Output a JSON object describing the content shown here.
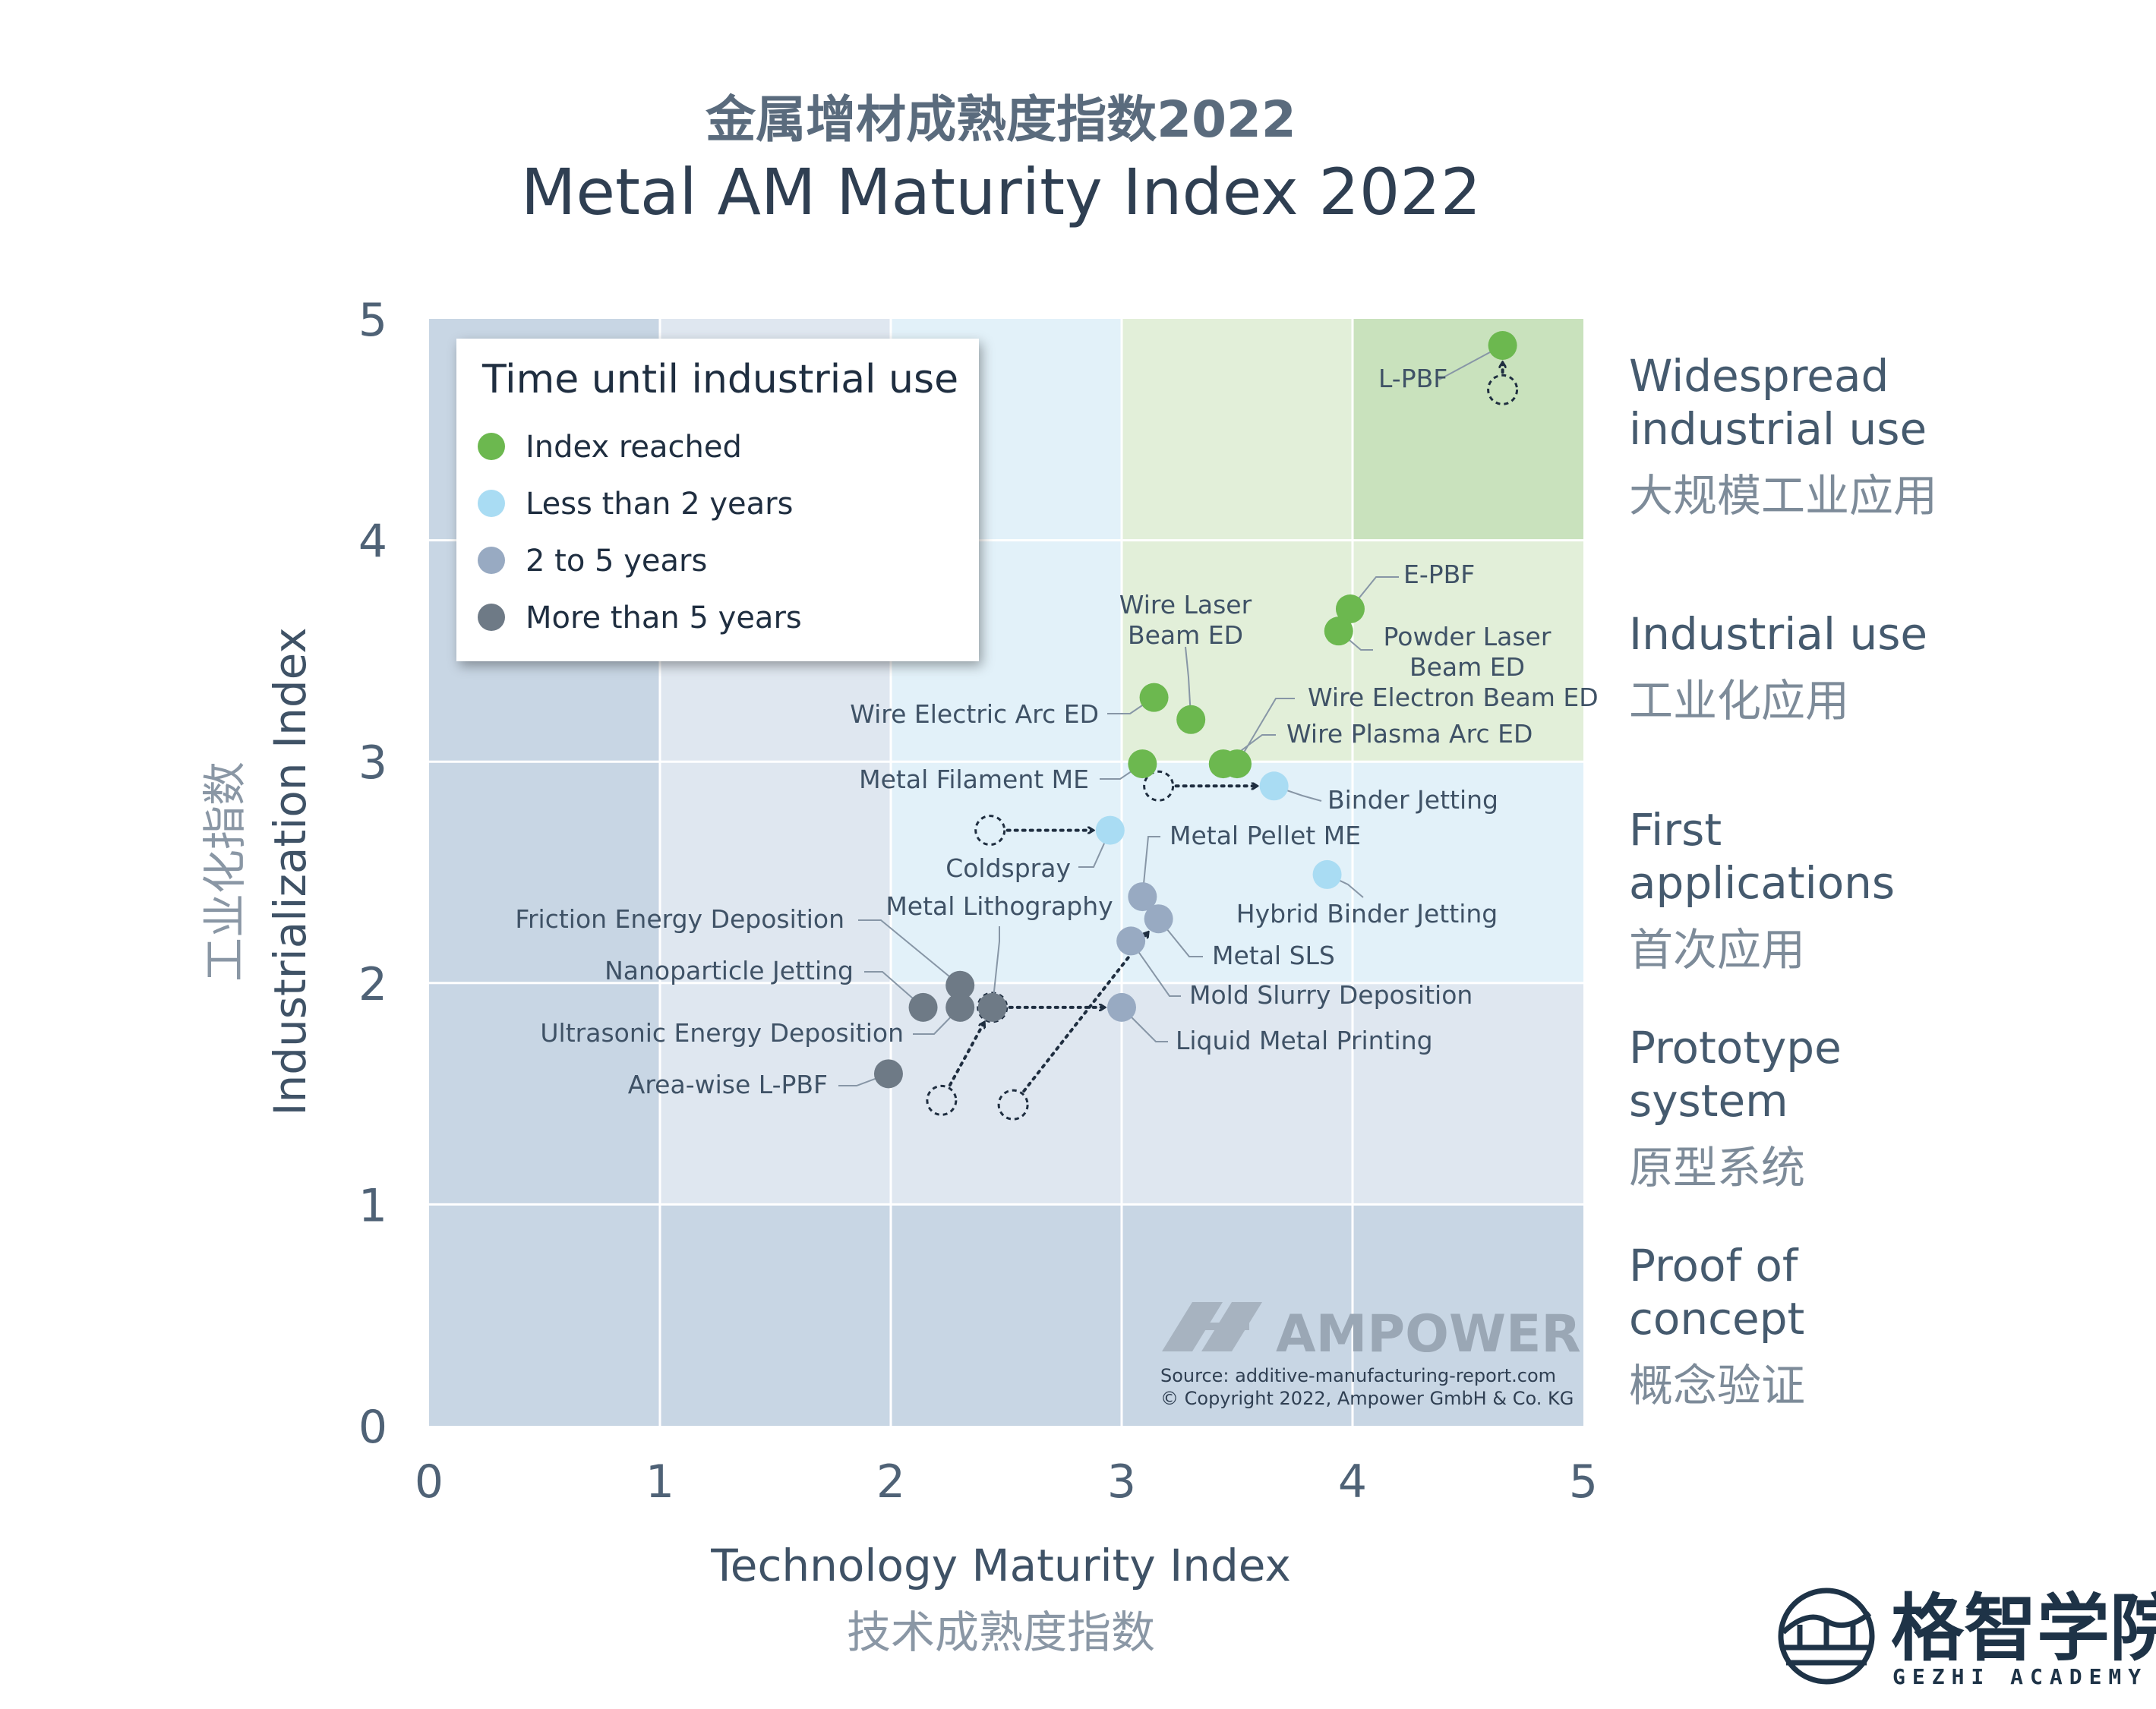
{
  "title_cn": "金属增材成熟度指数2022",
  "title_en": "Metal AM Maturity Index 2022",
  "colors": {
    "index_reached": "#6cb84f",
    "less_than_2": "#a9dcf3",
    "two_to_five": "#98aac2",
    "more_than_5": "#6e7a86",
    "zone_proof": "#c8d6e4",
    "zone_mid": "#dfe7f0",
    "zone_first": "#e2f1f9",
    "zone_industrial": "#e2efd9",
    "zone_widespread": "#c9e2bd",
    "arrow": "#1f2e40"
  },
  "legend": {
    "title": "Time until industrial use",
    "items": [
      {
        "label": "Index reached",
        "color": "#6cb84f"
      },
      {
        "label": "Less than 2 years",
        "color": "#a9dcf3"
      },
      {
        "label": "2 to 5 years",
        "color": "#98aac2"
      },
      {
        "label": "More than 5 years",
        "color": "#6e7a86"
      }
    ]
  },
  "categories": [
    {
      "en": [
        "Widespread",
        "industrial use"
      ],
      "cn": "大规模工业应用"
    },
    {
      "en": [
        "Industrial use"
      ],
      "cn": "工业化应用"
    },
    {
      "en": [
        "First",
        "applications"
      ],
      "cn": "首次应用"
    },
    {
      "en": [
        "Prototype",
        "system"
      ],
      "cn": "原型系统"
    },
    {
      "en": [
        "Proof of",
        "concept"
      ],
      "cn": "概念验证"
    }
  ],
  "watermark": {
    "brand": "AMPOWER",
    "source": "Source: additive-manufacturing-report.com",
    "copyright": "© Copyright 2022, Ampower GmbH & Co. KG"
  },
  "logo": {
    "cn": "格智学院",
    "en": "GEZHI ACADEMY"
  },
  "chart_data": {
    "type": "scatter",
    "xlabel": "Technology Maturity Index",
    "xlabel_cn": "技术成熟度指数",
    "ylabel": "Industrialization Index",
    "ylabel_cn": "工业化指数",
    "xlim": [
      0,
      5
    ],
    "ylim": [
      0,
      5
    ],
    "xticks": [
      "0",
      "1",
      "2",
      "3",
      "4",
      "5"
    ],
    "yticks": [
      "0",
      "1",
      "2",
      "3",
      "4",
      "5"
    ],
    "points": [
      {
        "label": "L-PBF",
        "x": 4.65,
        "y": 4.88,
        "group": "index_reached"
      },
      {
        "label": "E-PBF",
        "x": 3.99,
        "y": 3.69,
        "group": "index_reached"
      },
      {
        "label": "Powder Laser Beam ED",
        "x": 3.94,
        "y": 3.59,
        "group": "index_reached"
      },
      {
        "label": "Wire Laser Beam ED",
        "x": 3.3,
        "y": 3.19,
        "group": "index_reached"
      },
      {
        "label": "Wire Electric Arc ED",
        "x": 3.14,
        "y": 3.29,
        "group": "index_reached"
      },
      {
        "label": "Wire Electron Beam ED",
        "x": 3.5,
        "y": 2.99,
        "group": "index_reached"
      },
      {
        "label": "Wire Plasma Arc ED",
        "x": 3.44,
        "y": 2.99,
        "group": "index_reached"
      },
      {
        "label": "Metal Filament ME",
        "x": 3.09,
        "y": 2.99,
        "group": "index_reached"
      },
      {
        "label": "Binder Jetting",
        "x": 3.66,
        "y": 2.89,
        "group": "less_than_2"
      },
      {
        "label": "Coldspray",
        "x": 2.95,
        "y": 2.69,
        "group": "less_than_2"
      },
      {
        "label": "Hybrid Binder Jetting",
        "x": 3.89,
        "y": 2.49,
        "group": "less_than_2"
      },
      {
        "label": "Metal Pellet ME",
        "x": 3.09,
        "y": 2.39,
        "group": "two_to_five"
      },
      {
        "label": "Metal SLS",
        "x": 3.16,
        "y": 2.29,
        "group": "two_to_five"
      },
      {
        "label": "Mold Slurry Deposition",
        "x": 3.04,
        "y": 2.19,
        "group": "two_to_five"
      },
      {
        "label": "Liquid Metal Printing",
        "x": 3.0,
        "y": 1.89,
        "group": "two_to_five"
      },
      {
        "label": "Friction Energy Deposition",
        "x": 2.3,
        "y": 1.99,
        "group": "more_than_5"
      },
      {
        "label": "Metal Lithography",
        "x": 2.44,
        "y": 1.89,
        "group": "more_than_5"
      },
      {
        "label": "Nanoparticle Jetting",
        "x": 2.14,
        "y": 1.89,
        "group": "more_than_5"
      },
      {
        "label": "Ultrasonic Energy Deposition",
        "x": 2.3,
        "y": 1.89,
        "group": "more_than_5"
      },
      {
        "label": "Area-wise L-PBF",
        "x": 1.99,
        "y": 1.59,
        "group": "more_than_5"
      }
    ],
    "previous_positions": [
      {
        "label": "L-PBF",
        "x": 4.65,
        "y": 4.68
      },
      {
        "label": "Binder Jetting",
        "x": 3.16,
        "y": 2.89
      },
      {
        "label": "Coldspray",
        "x": 2.43,
        "y": 2.69
      },
      {
        "label": "Metal Lithography",
        "x": 2.22,
        "y": 1.47
      },
      {
        "label": "Liquid Metal Printing",
        "x": 2.44,
        "y": 1.89
      },
      {
        "label": "Metal SLS",
        "x": 2.53,
        "y": 1.45
      }
    ]
  }
}
